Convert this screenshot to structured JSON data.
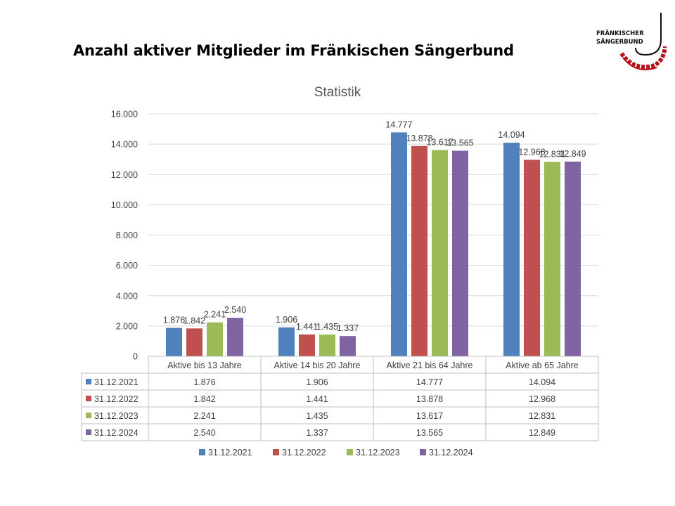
{
  "slide": {
    "title": "Anzahl aktiver Mitglieder im Fränkischen Sängerbund"
  },
  "logo": {
    "line1": "FRÄNKISCHER",
    "line2": "SÄNGERBUND",
    "color": "#b5121b"
  },
  "chart_data": {
    "type": "bar",
    "title": "Statistik",
    "categories": [
      "Aktive bis 13 Jahre",
      "Aktive 14 bis 20 Jahre",
      "Aktive 21 bis 64 Jahre",
      "Aktive ab 65 Jahre"
    ],
    "series": [
      {
        "name": "31.12.2021",
        "color": "#4f81bd",
        "values": [
          1876,
          1906,
          14777,
          14094
        ],
        "labels": [
          "1.876",
          "1.906",
          "14.777",
          "14.094"
        ]
      },
      {
        "name": "31.12.2022",
        "color": "#c0504d",
        "values": [
          1842,
          1441,
          13878,
          12968
        ],
        "labels": [
          "1.842",
          "1.441",
          "13.878",
          "12.968"
        ]
      },
      {
        "name": "31.12.2023",
        "color": "#9bbb59",
        "values": [
          2241,
          1435,
          13617,
          12831
        ],
        "labels": [
          "2.241",
          "1.435",
          "13.617",
          "12.831"
        ]
      },
      {
        "name": "31.12.2024",
        "color": "#8064a2",
        "values": [
          2540,
          1337,
          13565,
          12849
        ],
        "labels": [
          "2.540",
          "1.337",
          "13.565",
          "12.849"
        ]
      }
    ],
    "ylim": [
      0,
      16000
    ],
    "yticks": [
      0,
      2000,
      4000,
      6000,
      8000,
      10000,
      12000,
      14000,
      16000
    ],
    "ytick_labels": [
      "0",
      "2.000",
      "4.000",
      "6.000",
      "8.000",
      "10.000",
      "12.000",
      "14.000",
      "16.000"
    ],
    "grid": true,
    "data_table": true,
    "legend": "bottom"
  }
}
